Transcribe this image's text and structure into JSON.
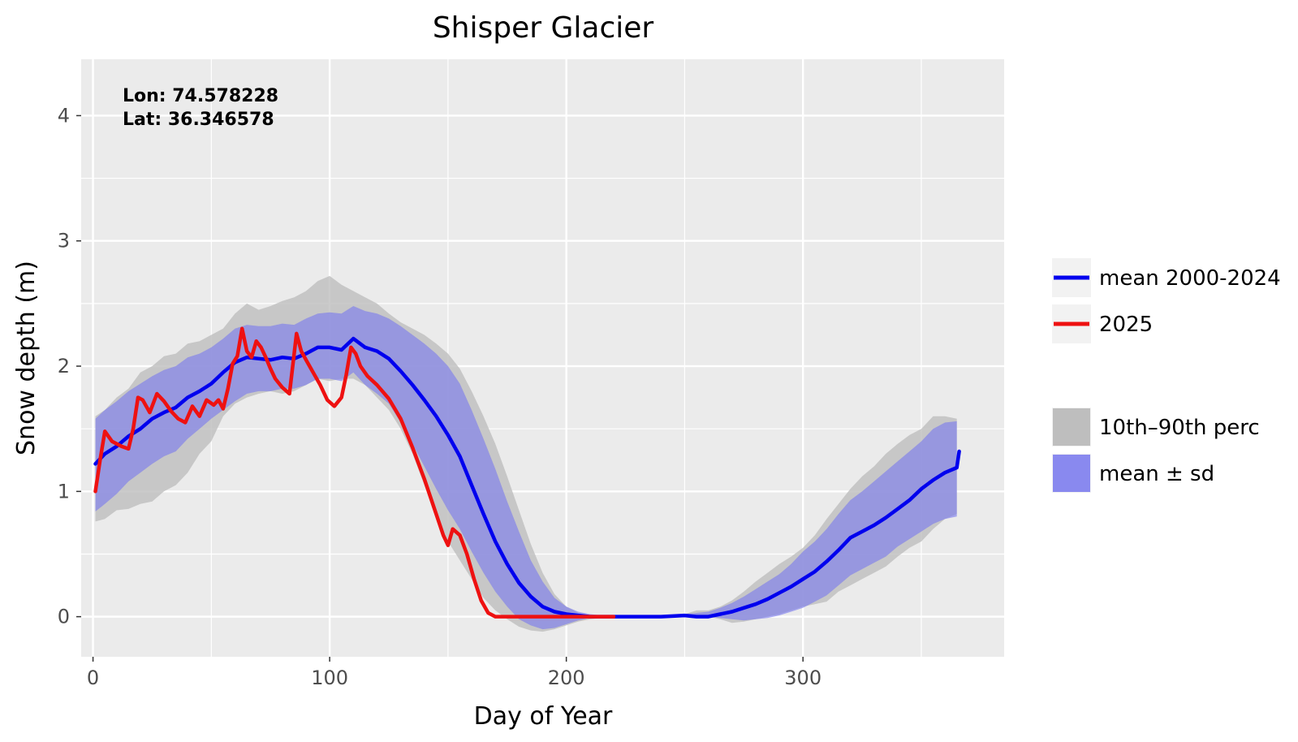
{
  "chart_data": {
    "type": "line",
    "title": "Shisper Glacier",
    "xlabel": "Day of Year",
    "ylabel": "Snow depth (m)",
    "xlim": [
      -5,
      385
    ],
    "ylim": [
      -0.32,
      4.45
    ],
    "x_ticks": [
      0,
      100,
      200,
      300
    ],
    "y_ticks": [
      0,
      1,
      2,
      3,
      4
    ],
    "x_minor": [
      50,
      150,
      250,
      350
    ],
    "y_minor": [
      0.5,
      1.5,
      2.5,
      3.5
    ],
    "grid": true,
    "annotation": [
      "Lon: 74.578228",
      "Lat: 36.346578"
    ],
    "legend_lines_label": "",
    "legend_bands_label": "",
    "series": [
      {
        "name": "mean 2000-2024",
        "color": "#0000ee",
        "x": [
          1,
          5,
          10,
          15,
          20,
          25,
          30,
          35,
          40,
          45,
          50,
          55,
          60,
          65,
          70,
          75,
          80,
          85,
          90,
          95,
          100,
          105,
          110,
          115,
          120,
          125,
          130,
          135,
          140,
          145,
          150,
          155,
          160,
          165,
          170,
          175,
          180,
          185,
          190,
          195,
          200,
          205,
          210,
          220,
          230,
          240,
          250,
          255,
          260,
          265,
          270,
          275,
          280,
          285,
          290,
          295,
          300,
          305,
          310,
          315,
          320,
          325,
          330,
          335,
          340,
          345,
          350,
          355,
          360,
          365,
          366
        ],
        "values": [
          1.22,
          1.3,
          1.36,
          1.44,
          1.5,
          1.58,
          1.63,
          1.67,
          1.75,
          1.8,
          1.86,
          1.95,
          2.03,
          2.07,
          2.06,
          2.05,
          2.07,
          2.06,
          2.1,
          2.15,
          2.15,
          2.13,
          2.22,
          2.15,
          2.12,
          2.06,
          1.96,
          1.85,
          1.73,
          1.6,
          1.45,
          1.28,
          1.05,
          0.82,
          0.6,
          0.42,
          0.27,
          0.16,
          0.08,
          0.04,
          0.02,
          0.01,
          0.0,
          0.0,
          0.0,
          0.0,
          0.01,
          0.0,
          0.0,
          0.02,
          0.04,
          0.07,
          0.1,
          0.14,
          0.19,
          0.24,
          0.3,
          0.36,
          0.44,
          0.53,
          0.63,
          0.68,
          0.73,
          0.79,
          0.86,
          0.93,
          1.02,
          1.09,
          1.15,
          1.19,
          1.32
        ]
      },
      {
        "name": "2025",
        "color": "#ee1111",
        "x": [
          1,
          3,
          5,
          8,
          12,
          15,
          17,
          19,
          21,
          24,
          27,
          30,
          33,
          36,
          39,
          42,
          45,
          48,
          51,
          53,
          55,
          57,
          59,
          61,
          63,
          65,
          67,
          69,
          71,
          73,
          75,
          77,
          80,
          83,
          86,
          88,
          90,
          93,
          96,
          99,
          102,
          105,
          107,
          109,
          111,
          113,
          116,
          120,
          125,
          130,
          135,
          140,
          145,
          148,
          150,
          152,
          155,
          158,
          161,
          164,
          167,
          170,
          175,
          180,
          190,
          200,
          210,
          220
        ],
        "values": [
          1.0,
          1.25,
          1.48,
          1.4,
          1.36,
          1.34,
          1.5,
          1.75,
          1.73,
          1.63,
          1.78,
          1.72,
          1.64,
          1.58,
          1.55,
          1.68,
          1.6,
          1.73,
          1.69,
          1.73,
          1.66,
          1.82,
          2.02,
          2.08,
          2.3,
          2.12,
          2.07,
          2.2,
          2.15,
          2.07,
          1.98,
          1.9,
          1.83,
          1.78,
          2.26,
          2.12,
          2.05,
          1.95,
          1.85,
          1.73,
          1.68,
          1.75,
          1.93,
          2.15,
          2.1,
          2.0,
          1.92,
          1.85,
          1.74,
          1.58,
          1.35,
          1.1,
          0.82,
          0.65,
          0.57,
          0.7,
          0.65,
          0.5,
          0.3,
          0.13,
          0.03,
          0.0,
          0.0,
          0.0,
          0.0,
          0.0,
          0.0,
          0.0
        ]
      }
    ],
    "bands": [
      {
        "name": "10th–90th perc",
        "color": "#bebebe",
        "x": [
          1,
          5,
          10,
          15,
          20,
          25,
          30,
          35,
          40,
          45,
          50,
          55,
          60,
          65,
          70,
          75,
          80,
          85,
          90,
          95,
          100,
          105,
          110,
          115,
          120,
          125,
          130,
          135,
          140,
          145,
          150,
          155,
          160,
          165,
          170,
          175,
          180,
          185,
          190,
          195,
          200,
          205,
          210,
          220,
          230,
          240,
          250,
          255,
          260,
          265,
          270,
          275,
          280,
          285,
          290,
          295,
          300,
          305,
          310,
          315,
          320,
          325,
          330,
          335,
          340,
          345,
          350,
          355,
          360,
          365
        ],
        "low": [
          0.76,
          0.78,
          0.85,
          0.86,
          0.9,
          0.92,
          1.0,
          1.05,
          1.15,
          1.3,
          1.4,
          1.6,
          1.7,
          1.75,
          1.78,
          1.8,
          1.78,
          1.8,
          1.85,
          1.9,
          1.88,
          1.9,
          1.9,
          1.85,
          1.75,
          1.65,
          1.5,
          1.3,
          1.05,
          0.8,
          0.6,
          0.45,
          0.3,
          0.15,
          0.05,
          -0.02,
          -0.08,
          -0.11,
          -0.12,
          -0.1,
          -0.07,
          -0.04,
          -0.02,
          0.0,
          0.0,
          0.0,
          0.0,
          0.0,
          0.0,
          -0.02,
          -0.05,
          -0.04,
          -0.02,
          0.0,
          0.02,
          0.05,
          0.08,
          0.1,
          0.12,
          0.2,
          0.25,
          0.3,
          0.35,
          0.4,
          0.48,
          0.55,
          0.6,
          0.7,
          0.78,
          0.82
        ],
        "high": [
          1.6,
          1.65,
          1.75,
          1.82,
          1.95,
          2.0,
          2.08,
          2.1,
          2.18,
          2.2,
          2.25,
          2.3,
          2.42,
          2.5,
          2.45,
          2.48,
          2.52,
          2.55,
          2.6,
          2.68,
          2.72,
          2.65,
          2.6,
          2.55,
          2.5,
          2.42,
          2.35,
          2.3,
          2.25,
          2.18,
          2.1,
          1.98,
          1.8,
          1.6,
          1.38,
          1.12,
          0.85,
          0.58,
          0.35,
          0.18,
          0.08,
          0.03,
          0.01,
          0.0,
          0.0,
          0.0,
          0.02,
          0.05,
          0.05,
          0.08,
          0.13,
          0.2,
          0.28,
          0.35,
          0.42,
          0.48,
          0.55,
          0.65,
          0.78,
          0.9,
          1.02,
          1.12,
          1.2,
          1.3,
          1.38,
          1.45,
          1.5,
          1.6,
          1.6,
          1.58
        ]
      },
      {
        "name": "mean ± sd",
        "color": "#7777ee",
        "x": [
          1,
          5,
          10,
          15,
          20,
          25,
          30,
          35,
          40,
          45,
          50,
          55,
          60,
          65,
          70,
          75,
          80,
          85,
          90,
          95,
          100,
          105,
          110,
          115,
          120,
          125,
          130,
          135,
          140,
          145,
          150,
          155,
          160,
          165,
          170,
          175,
          180,
          185,
          190,
          195,
          200,
          205,
          210,
          220,
          230,
          240,
          250,
          255,
          260,
          265,
          270,
          275,
          280,
          285,
          290,
          295,
          300,
          305,
          310,
          315,
          320,
          325,
          330,
          335,
          340,
          345,
          350,
          355,
          360,
          365
        ],
        "low": [
          0.84,
          0.9,
          0.98,
          1.08,
          1.15,
          1.22,
          1.28,
          1.32,
          1.42,
          1.5,
          1.58,
          1.65,
          1.72,
          1.78,
          1.8,
          1.8,
          1.82,
          1.82,
          1.85,
          1.9,
          1.9,
          1.88,
          1.95,
          1.85,
          1.78,
          1.7,
          1.55,
          1.38,
          1.2,
          1.02,
          0.85,
          0.7,
          0.52,
          0.35,
          0.2,
          0.08,
          -0.02,
          -0.07,
          -0.1,
          -0.09,
          -0.06,
          -0.03,
          -0.01,
          0.0,
          0.0,
          0.0,
          0.0,
          0.0,
          0.0,
          -0.01,
          -0.02,
          -0.03,
          -0.02,
          -0.01,
          0.01,
          0.04,
          0.07,
          0.12,
          0.17,
          0.25,
          0.33,
          0.38,
          0.43,
          0.48,
          0.56,
          0.62,
          0.68,
          0.74,
          0.78,
          0.8
        ],
        "high": [
          1.58,
          1.65,
          1.72,
          1.8,
          1.86,
          1.92,
          1.97,
          2.0,
          2.07,
          2.1,
          2.15,
          2.22,
          2.3,
          2.33,
          2.32,
          2.32,
          2.34,
          2.33,
          2.38,
          2.42,
          2.43,
          2.42,
          2.48,
          2.44,
          2.42,
          2.38,
          2.32,
          2.25,
          2.18,
          2.1,
          2.0,
          1.86,
          1.65,
          1.42,
          1.18,
          0.92,
          0.68,
          0.45,
          0.28,
          0.15,
          0.08,
          0.04,
          0.02,
          0.0,
          0.0,
          0.0,
          0.02,
          0.03,
          0.04,
          0.07,
          0.11,
          0.16,
          0.22,
          0.28,
          0.34,
          0.42,
          0.52,
          0.6,
          0.7,
          0.82,
          0.93,
          1.0,
          1.08,
          1.16,
          1.24,
          1.32,
          1.4,
          1.5,
          1.55,
          1.56
        ]
      }
    ]
  }
}
